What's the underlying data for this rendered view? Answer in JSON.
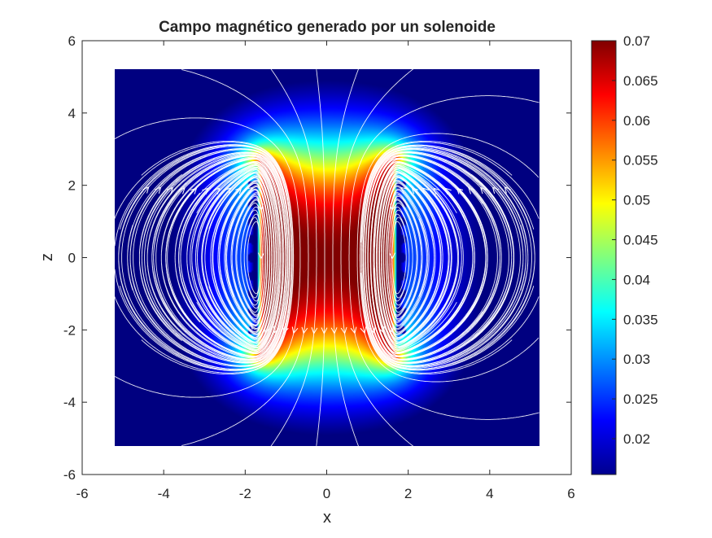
{
  "chart_data": {
    "type": "heatmap",
    "title": "Campo magnético generado por un solenoide",
    "xlabel": "x",
    "ylabel": "z",
    "xlim": [
      -6,
      6
    ],
    "ylim": [
      -6,
      6
    ],
    "x_ticks": [
      "-6",
      "-4",
      "-2",
      "0",
      "2",
      "4",
      "6"
    ],
    "y_ticks": [
      "6",
      "4",
      "2",
      "0",
      "-2",
      "-4",
      "-6"
    ],
    "field_extent": {
      "x": [
        -5.2,
        5.2
      ],
      "z": [
        -5.2,
        5.2
      ]
    },
    "solenoid": {
      "radius": 1.7,
      "z_range": [
        -2.7,
        2.7
      ],
      "coil_z": [
        -2.0,
        -1.5,
        -1.0,
        -0.5,
        0.0,
        0.5,
        1.0,
        1.5,
        2.0
      ]
    },
    "interior_value": 0.07,
    "exterior_min": 0.016,
    "streamlines": "white",
    "colormap": "jet",
    "colorbar": {
      "min": 0.0155,
      "max": 0.07,
      "tick_values": [
        0.07,
        0.065,
        0.06,
        0.055,
        0.05,
        0.045,
        0.04,
        0.035,
        0.03,
        0.025,
        0.02
      ],
      "tick_labels": [
        "0.07",
        "0.065",
        "0.06",
        "0.055",
        "0.05",
        "0.045",
        "0.04",
        "0.035",
        "0.03",
        "0.025",
        "0.02"
      ]
    }
  }
}
